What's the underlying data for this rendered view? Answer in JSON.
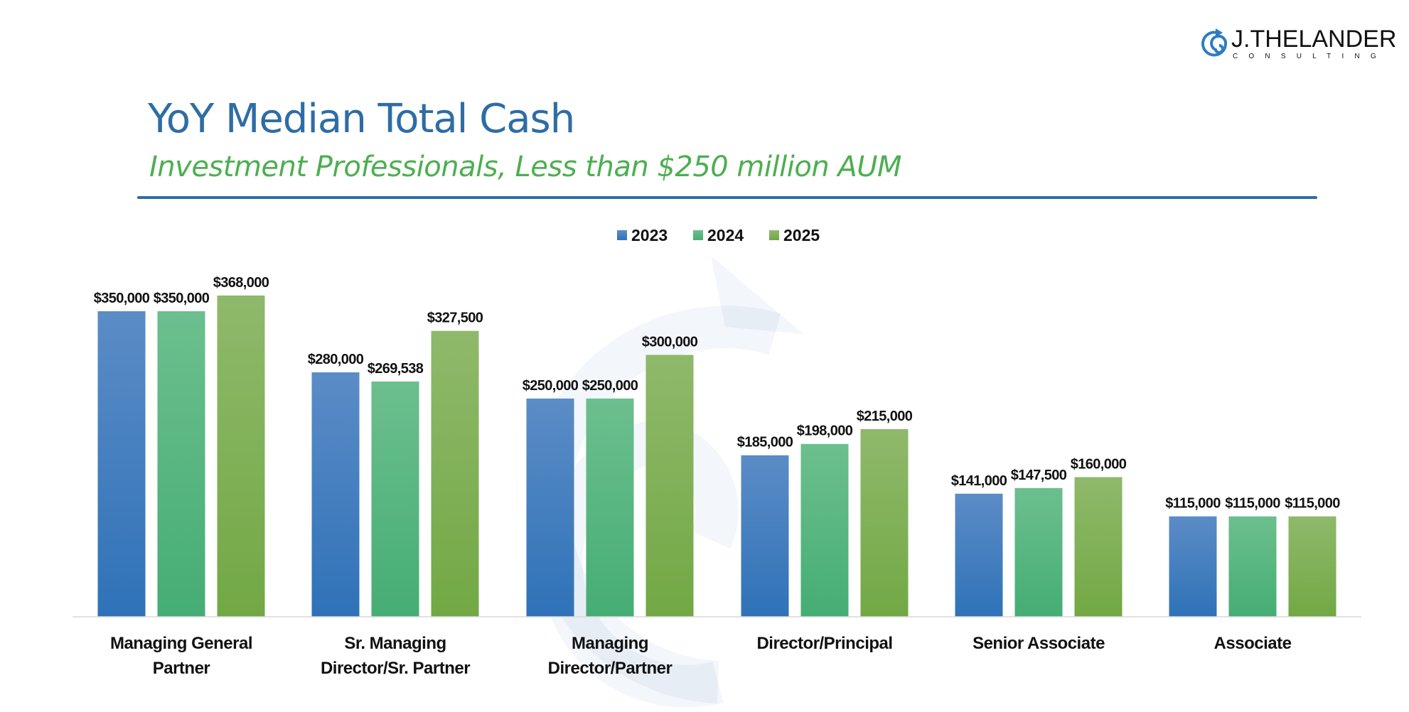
{
  "header": {
    "title": "YoY Median Total Cash",
    "subtitle": "Investment Professionals, Less than $250 million AUM"
  },
  "logo": {
    "name": "J.THELANDER",
    "sub": "CONSULTING"
  },
  "chart_data": {
    "type": "bar",
    "title": "YoY Median Total Cash",
    "subtitle": "Investment Professionals, Less than $250 million AUM",
    "legend_position": "top-center",
    "grid": false,
    "ylim": [
      0,
      400000
    ],
    "categories": [
      [
        "Managing General",
        "Partner"
      ],
      [
        "Sr. Managing",
        "Director/Sr. Partner"
      ],
      [
        "Managing",
        "Director/Partner"
      ],
      [
        "Director/Principal"
      ],
      [
        "Senior Associate"
      ],
      [
        "Associate"
      ]
    ],
    "series": [
      {
        "name": "2023",
        "color": "#3a78c0",
        "values": [
          350000,
          280000,
          250000,
          185000,
          141000,
          115000
        ],
        "labels": [
          "$350,000",
          "$280,000",
          "$250,000",
          "$185,000",
          "$141,000",
          "$115,000"
        ]
      },
      {
        "name": "2024",
        "color": "#4db37a",
        "values": [
          350000,
          269538,
          250000,
          198000,
          147500,
          115000
        ],
        "labels": [
          "$350,000",
          "$269,538",
          "$250,000",
          "$198,000",
          "$147,500",
          "$115,000"
        ]
      },
      {
        "name": "2025",
        "color": "#7cae4a",
        "values": [
          368000,
          327500,
          300000,
          215000,
          160000,
          115000
        ],
        "labels": [
          "$368,000",
          "$327,500",
          "$300,000",
          "$215,000",
          "$160,000",
          "$115,000"
        ]
      }
    ]
  }
}
